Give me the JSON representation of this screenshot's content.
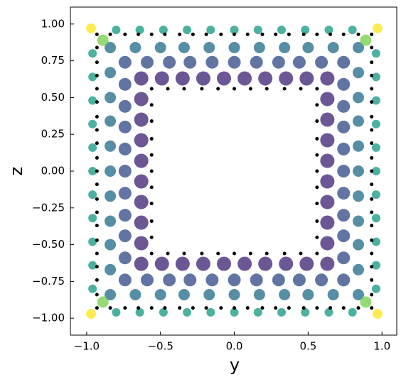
{
  "chart_data": {
    "type": "scatter",
    "x_label": "y",
    "y_label": "z",
    "xlim": [
      -1.11,
      1.1
    ],
    "ylim": [
      -1.115,
      1.115
    ],
    "xticks": [
      {
        "value": -1.0,
        "label": "−1.0"
      },
      {
        "value": -0.5,
        "label": "−0.5"
      },
      {
        "value": 0.0,
        "label": "0.0"
      },
      {
        "value": 0.5,
        "label": "0.5"
      },
      {
        "value": 1.0,
        "label": "1.0"
      }
    ],
    "yticks": [
      {
        "value": -1.0,
        "label": "−1.00"
      },
      {
        "value": -0.75,
        "label": "−0.75"
      },
      {
        "value": -0.5,
        "label": "−0.50"
      },
      {
        "value": -0.25,
        "label": "−0.25"
      },
      {
        "value": 0.0,
        "label": "0.00"
      },
      {
        "value": 0.25,
        "label": "0.25"
      },
      {
        "value": 0.5,
        "label": "0.50"
      },
      {
        "value": 0.75,
        "label": "0.75"
      },
      {
        "value": 1.0,
        "label": "1.00"
      }
    ],
    "grid": false,
    "series": [
      {
        "color": "#1f9e89",
        "size": 6,
        "x": [
          -0.8,
          -0.64,
          -0.48,
          -0.32,
          -0.16,
          0,
          0.16,
          0.32,
          0.48,
          0.64,
          0.8,
          -0.8,
          -0.64,
          -0.48,
          -0.32,
          -0.16,
          0,
          0.16,
          0.32,
          0.48,
          0.64,
          0.8,
          -0.96,
          -0.96,
          -0.96,
          -0.96,
          -0.96,
          -0.96,
          -0.96,
          -0.96,
          -0.96,
          -0.96,
          -0.96,
          0.96,
          0.96,
          0.96,
          0.96,
          0.96,
          0.96,
          0.96,
          0.96,
          0.96,
          0.96,
          0.96
        ],
        "y": [
          0.96,
          0.96,
          0.96,
          0.96,
          0.96,
          0.96,
          0.96,
          0.96,
          0.96,
          0.96,
          0.96,
          -0.96,
          -0.96,
          -0.96,
          -0.96,
          -0.96,
          -0.96,
          -0.96,
          -0.96,
          -0.96,
          -0.96,
          -0.96,
          -0.8,
          -0.64,
          -0.48,
          -0.32,
          -0.16,
          0,
          0.16,
          0.32,
          0.48,
          0.64,
          0.8,
          -0.8,
          -0.64,
          -0.48,
          -0.32,
          -0.16,
          0,
          0.16,
          0.32,
          0.48,
          0.64,
          0.8
        ]
      },
      {
        "color": "#2c728e",
        "size": 8,
        "x": [
          -0.84,
          -0.67,
          -0.5,
          -0.34,
          -0.17,
          0,
          0.17,
          0.34,
          0.5,
          0.67,
          0.84,
          -0.84,
          -0.67,
          -0.5,
          -0.34,
          -0.17,
          0,
          0.17,
          0.34,
          0.5,
          0.67,
          0.84,
          -0.84,
          -0.84,
          -0.84,
          -0.84,
          -0.84,
          -0.84,
          -0.84,
          -0.84,
          -0.84,
          0.84,
          0.84,
          0.84,
          0.84,
          0.84,
          0.84,
          0.84,
          0.84,
          0.84
        ],
        "y": [
          0.84,
          0.84,
          0.84,
          0.84,
          0.84,
          0.84,
          0.84,
          0.84,
          0.84,
          0.84,
          0.84,
          -0.84,
          -0.84,
          -0.84,
          -0.84,
          -0.84,
          -0.84,
          -0.84,
          -0.84,
          -0.84,
          -0.84,
          -0.84,
          -0.67,
          -0.5,
          -0.34,
          -0.17,
          0,
          0.17,
          0.34,
          0.5,
          0.67,
          -0.67,
          -0.5,
          -0.34,
          -0.17,
          0,
          0.17,
          0.34,
          0.5,
          0.67
        ]
      },
      {
        "color": "#3b528b",
        "size": 9,
        "x": [
          -0.74,
          -0.59,
          -0.44,
          -0.3,
          -0.15,
          0,
          0.15,
          0.3,
          0.44,
          0.59,
          0.74,
          -0.74,
          -0.59,
          -0.44,
          -0.3,
          -0.15,
          0,
          0.15,
          0.3,
          0.44,
          0.59,
          0.74,
          -0.74,
          -0.74,
          -0.74,
          -0.74,
          -0.74,
          -0.74,
          -0.74,
          -0.74,
          -0.74,
          0.74,
          0.74,
          0.74,
          0.74,
          0.74,
          0.74,
          0.74,
          0.74,
          0.74
        ],
        "y": [
          0.74,
          0.74,
          0.74,
          0.74,
          0.74,
          0.74,
          0.74,
          0.74,
          0.74,
          0.74,
          0.74,
          -0.74,
          -0.74,
          -0.74,
          -0.74,
          -0.74,
          -0.74,
          -0.74,
          -0.74,
          -0.74,
          -0.74,
          -0.74,
          -0.59,
          -0.44,
          -0.3,
          -0.15,
          0,
          0.15,
          0.3,
          0.44,
          0.59,
          -0.59,
          -0.44,
          -0.3,
          -0.15,
          0,
          0.15,
          0.3,
          0.44,
          0.59
        ]
      },
      {
        "color": "#472d7b",
        "size": 10,
        "x": [
          -0.63,
          -0.49,
          -0.35,
          -0.21,
          -0.07,
          0.07,
          0.21,
          0.35,
          0.49,
          0.63,
          -0.63,
          -0.49,
          -0.35,
          -0.21,
          -0.07,
          0.07,
          0.21,
          0.35,
          0.49,
          0.63,
          -0.63,
          -0.63,
          -0.63,
          -0.63,
          -0.63,
          -0.63,
          -0.63,
          -0.63,
          0.63,
          0.63,
          0.63,
          0.63,
          0.63,
          0.63,
          0.63,
          0.63
        ],
        "y": [
          0.63,
          0.63,
          0.63,
          0.63,
          0.63,
          0.63,
          0.63,
          0.63,
          0.63,
          0.63,
          -0.63,
          -0.63,
          -0.63,
          -0.63,
          -0.63,
          -0.63,
          -0.63,
          -0.63,
          -0.63,
          -0.63,
          -0.49,
          -0.35,
          -0.21,
          -0.07,
          0.07,
          0.21,
          0.35,
          0.49,
          -0.49,
          -0.35,
          -0.21,
          -0.07,
          0.07,
          0.21,
          0.35,
          0.49
        ]
      },
      {
        "color": "#7ad151",
        "size": 8,
        "x": [
          -0.89,
          0.89,
          -0.89,
          0.89
        ],
        "y": [
          0.89,
          0.89,
          -0.89,
          -0.89
        ]
      },
      {
        "color": "#fde725",
        "size": 7,
        "x": [
          -0.97,
          0.97,
          -0.97,
          0.97
        ],
        "y": [
          0.97,
          0.97,
          -0.97,
          -0.97
        ]
      },
      {
        "color": "#000000",
        "size": 2.5,
        "x": [
          -0.93,
          -0.84,
          -0.74,
          -0.65,
          -0.56,
          -0.47,
          -0.37,
          -0.28,
          -0.19,
          -0.09,
          0,
          0.09,
          0.19,
          0.28,
          0.37,
          0.47,
          0.56,
          0.65,
          0.74,
          0.84,
          0.93,
          -0.93,
          -0.84,
          -0.74,
          -0.65,
          -0.56,
          -0.47,
          -0.37,
          -0.28,
          -0.19,
          -0.09,
          0,
          0.09,
          0.19,
          0.28,
          0.37,
          0.47,
          0.56,
          0.65,
          0.74,
          0.84,
          0.93,
          -0.93,
          -0.93,
          -0.93,
          -0.93,
          -0.93,
          -0.93,
          -0.93,
          -0.93,
          -0.93,
          -0.93,
          -0.93,
          -0.93,
          -0.93,
          -0.93,
          -0.93,
          -0.93,
          -0.93,
          -0.93,
          -0.93,
          0.93,
          0.93,
          0.93,
          0.93,
          0.93,
          0.93,
          0.93,
          0.93,
          0.93,
          0.93,
          0.93,
          0.93,
          0.93,
          0.93,
          0.93,
          0.93,
          0.93,
          0.93,
          0.93
        ],
        "y": [
          0.93,
          0.93,
          0.93,
          0.93,
          0.93,
          0.93,
          0.93,
          0.93,
          0.93,
          0.93,
          0.93,
          0.93,
          0.93,
          0.93,
          0.93,
          0.93,
          0.93,
          0.93,
          0.93,
          0.93,
          0.93,
          -0.93,
          -0.93,
          -0.93,
          -0.93,
          -0.93,
          -0.93,
          -0.93,
          -0.93,
          -0.93,
          -0.93,
          -0.93,
          -0.93,
          -0.93,
          -0.93,
          -0.93,
          -0.93,
          -0.93,
          -0.93,
          -0.93,
          -0.93,
          -0.93,
          -0.84,
          -0.74,
          -0.65,
          -0.56,
          -0.47,
          -0.37,
          -0.28,
          -0.19,
          -0.09,
          0,
          0.09,
          0.19,
          0.28,
          0.37,
          0.47,
          0.56,
          0.65,
          0.74,
          0.84,
          -0.84,
          -0.74,
          -0.65,
          -0.56,
          -0.47,
          -0.37,
          -0.28,
          -0.19,
          -0.09,
          0,
          0.09,
          0.19,
          0.28,
          0.37,
          0.47,
          0.56,
          0.65,
          0.74,
          0.84
        ]
      },
      {
        "color": "#000000",
        "size": 2.5,
        "x": [
          -0.56,
          -0.45,
          -0.34,
          -0.22,
          -0.11,
          0,
          0.11,
          0.22,
          0.34,
          0.45,
          0.56,
          -0.56,
          -0.45,
          -0.34,
          -0.22,
          -0.11,
          0,
          0.11,
          0.22,
          0.34,
          0.45,
          0.56,
          -0.56,
          -0.56,
          -0.56,
          -0.56,
          -0.56,
          -0.56,
          -0.56,
          -0.56,
          -0.56,
          0.56,
          0.56,
          0.56,
          0.56,
          0.56,
          0.56,
          0.56,
          0.56,
          0.56
        ],
        "y": [
          0.56,
          0.56,
          0.56,
          0.56,
          0.56,
          0.56,
          0.56,
          0.56,
          0.56,
          0.56,
          0.56,
          -0.56,
          -0.56,
          -0.56,
          -0.56,
          -0.56,
          -0.56,
          -0.56,
          -0.56,
          -0.56,
          -0.56,
          -0.56,
          -0.45,
          -0.34,
          -0.22,
          -0.11,
          0,
          0.11,
          0.22,
          0.34,
          0.45,
          -0.45,
          -0.34,
          -0.22,
          -0.11,
          0,
          0.11,
          0.22,
          0.34,
          0.45
        ]
      }
    ]
  }
}
